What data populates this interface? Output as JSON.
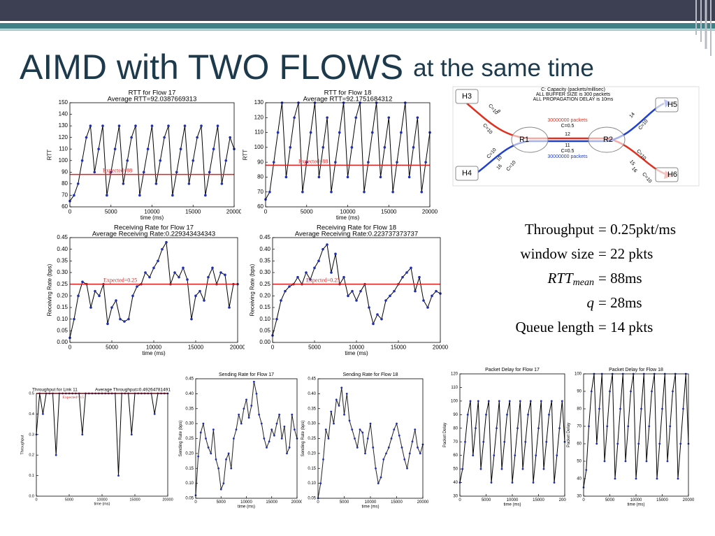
{
  "title": {
    "main": "AIMD with TWO FLOWS",
    "sub": "at the same time"
  },
  "diagram": {
    "notes": [
      "C: Capacity (packets/millisec)",
      "ALL BUFFER SIZE is 300 packets",
      "ALL PROPAGATION DELAY is 10ms"
    ],
    "nodes": [
      "H3",
      "H4",
      "R1",
      "R2",
      "H5",
      "H6"
    ],
    "link_labels": [
      "30000000 packets",
      "C=0.5",
      "12",
      "11",
      "C=0.5",
      "30000000 packets"
    ],
    "edge_labels": [
      "C=10",
      "8",
      "C=10",
      "C=10",
      "10",
      "16",
      "C=10",
      "14",
      "C=10",
      "C=10",
      "15",
      "16",
      "C=10"
    ]
  },
  "equations": [
    {
      "lhs": "Throughput",
      "rhs": "= 0.25pkt/ms"
    },
    {
      "lhs": "window size",
      "rhs": "= 22 pkts"
    },
    {
      "lhs": "RTT",
      "sub": "mean",
      "rhs": "= 88ms"
    },
    {
      "lhs": "q",
      "rhs": "= 28ms"
    },
    {
      "lhs": "Queue length",
      "rhs": "= 14 pkts"
    }
  ],
  "chart_data": [
    {
      "type": "line",
      "title": "RTT for Flow 17",
      "subtitle": "Average RTT=92.0387669313",
      "xlabel": "time (ms)",
      "ylabel": "RTT",
      "color": "#000000",
      "marker_color": "#1f2fb0",
      "x": [
        0,
        500,
        1000,
        1500,
        2000,
        2500,
        3000,
        3500,
        4000,
        4500,
        5000,
        5500,
        6000,
        6500,
        7000,
        7500,
        8000,
        8500,
        9000,
        9500,
        10000,
        10500,
        11000,
        11500,
        12000,
        12500,
        13000,
        13500,
        14000,
        14500,
        15000,
        15500,
        16000,
        16500,
        17000,
        17500,
        18000,
        18500,
        19000,
        19500,
        20000
      ],
      "values": [
        65,
        70,
        80,
        100,
        120,
        130,
        90,
        110,
        130,
        70,
        90,
        110,
        130,
        80,
        100,
        120,
        130,
        70,
        90,
        110,
        130,
        80,
        100,
        120,
        130,
        70,
        90,
        110,
        130,
        80,
        100,
        120,
        130,
        70,
        90,
        110,
        130,
        80,
        100,
        120,
        110
      ],
      "xlim": [
        0,
        20000
      ],
      "xticks": [
        0,
        5000,
        10000,
        15000,
        20000
      ],
      "ylim": [
        60,
        150
      ],
      "yticks": [
        60,
        70,
        80,
        90,
        100,
        110,
        120,
        130,
        140,
        150
      ],
      "expected": {
        "value": 88,
        "label": "Expected=88",
        "color": "#e02020"
      }
    },
    {
      "type": "line",
      "title": "RTT for Flow 18",
      "subtitle": "Average RTT=92.1751684312",
      "xlabel": "time (ms)",
      "ylabel": "RTT",
      "color": "#000000",
      "marker_color": "#1f2fb0",
      "x": [
        0,
        500,
        1000,
        1500,
        2000,
        2500,
        3000,
        3500,
        4000,
        4500,
        5000,
        5500,
        6000,
        6500,
        7000,
        7500,
        8000,
        8500,
        9000,
        9500,
        10000,
        10500,
        11000,
        11500,
        12000,
        12500,
        13000,
        13500,
        14000,
        14500,
        15000,
        15500,
        16000,
        16500,
        17000,
        17500,
        18000,
        18500,
        19000,
        19500,
        20000
      ],
      "values": [
        65,
        70,
        90,
        110,
        130,
        80,
        100,
        120,
        130,
        70,
        90,
        110,
        130,
        80,
        100,
        120,
        70,
        90,
        110,
        130,
        80,
        100,
        120,
        130,
        70,
        90,
        110,
        130,
        80,
        100,
        120,
        70,
        90,
        110,
        130,
        80,
        100,
        120,
        70,
        90,
        110
      ],
      "xlim": [
        0,
        20000
      ],
      "xticks": [
        0,
        5000,
        10000,
        15000,
        20000
      ],
      "ylim": [
        60,
        130
      ],
      "yticks": [
        60,
        70,
        80,
        90,
        100,
        110,
        120,
        130
      ],
      "expected": {
        "value": 88,
        "label": "Expected=88",
        "color": "#e02020"
      }
    },
    {
      "type": "line",
      "title": "Receiving Rate for Flow 17",
      "subtitle": "Average Receiving Rate:0.229343434343",
      "xlabel": "time (ms)",
      "ylabel": "Receiving Rate (bps)",
      "color": "#000000",
      "marker_color": "#1f2fb0",
      "x": [
        0,
        500,
        1000,
        1500,
        2000,
        2500,
        3000,
        3500,
        4000,
        4500,
        5000,
        5500,
        6000,
        6500,
        7000,
        7500,
        8000,
        8500,
        9000,
        9500,
        10000,
        10500,
        11000,
        11500,
        12000,
        12500,
        13000,
        13500,
        14000,
        14500,
        15000,
        15500,
        16000,
        16500,
        17000,
        17500,
        18000,
        18500,
        19000,
        19500,
        20000
      ],
      "values": [
        0.02,
        0.1,
        0.2,
        0.26,
        0.25,
        0.15,
        0.22,
        0.2,
        0.25,
        0.08,
        0.15,
        0.18,
        0.1,
        0.09,
        0.1,
        0.2,
        0.24,
        0.25,
        0.3,
        0.28,
        0.32,
        0.35,
        0.4,
        0.43,
        0.25,
        0.3,
        0.28,
        0.32,
        0.27,
        0.1,
        0.2,
        0.22,
        0.18,
        0.28,
        0.32,
        0.25,
        0.3,
        0.29,
        0.15,
        0.25,
        0.25
      ],
      "xlim": [
        0,
        20000
      ],
      "xticks": [
        0,
        5000,
        10000,
        15000,
        20000
      ],
      "ylim": [
        0,
        0.45
      ],
      "yticks": [
        {
          "value": 0,
          "label": "0.00"
        },
        0.05,
        {
          "value": 0.1,
          "label": "0.10"
        },
        0.15,
        {
          "value": 0.2,
          "label": "0.20"
        },
        0.25,
        {
          "value": 0.3,
          "label": "0.30"
        },
        0.35,
        {
          "value": 0.4,
          "label": "0.40"
        },
        0.45
      ],
      "expected": {
        "value": 0.25,
        "label": "Expected=0.25",
        "color": "#e02020"
      }
    },
    {
      "type": "line",
      "title": "Receiving Rate for Flow 18",
      "subtitle": "Average Receiving Rate:0.223737373737",
      "xlabel": "time (ms)",
      "ylabel": "Receiving Rate (bps)",
      "color": "#000000",
      "marker_color": "#1f2fb0",
      "x": [
        0,
        500,
        1000,
        1500,
        2000,
        2500,
        3000,
        3500,
        4000,
        4500,
        5000,
        5500,
        6000,
        6500,
        7000,
        7500,
        8000,
        8500,
        9000,
        9500,
        10000,
        10500,
        11000,
        11500,
        12000,
        12500,
        13000,
        13500,
        14000,
        14500,
        15000,
        15500,
        16000,
        16500,
        17000,
        17500,
        18000,
        18500,
        19000,
        19500,
        20000
      ],
      "values": [
        0.03,
        0.1,
        0.18,
        0.22,
        0.24,
        0.25,
        0.28,
        0.25,
        0.3,
        0.27,
        0.32,
        0.35,
        0.4,
        0.42,
        0.3,
        0.38,
        0.25,
        0.28,
        0.2,
        0.22,
        0.18,
        0.22,
        0.25,
        0.15,
        0.08,
        0.12,
        0.1,
        0.18,
        0.2,
        0.22,
        0.25,
        0.28,
        0.3,
        0.32,
        0.22,
        0.28,
        0.18,
        0.15,
        0.2,
        0.22,
        0.21
      ],
      "xlim": [
        0,
        20000
      ],
      "xticks": [
        0,
        5000,
        10000,
        15000,
        20000
      ],
      "ylim": [
        0,
        0.45
      ],
      "yticks": [
        {
          "value": 0,
          "label": "0.00"
        },
        0.05,
        {
          "value": 0.1,
          "label": "0.10"
        },
        0.15,
        {
          "value": 0.2,
          "label": "0.20"
        },
        0.25,
        {
          "value": 0.3,
          "label": "0.30"
        },
        0.35,
        {
          "value": 0.4,
          "label": "0.40"
        },
        0.45
      ],
      "expected": {
        "value": 0.25,
        "label": "Expected=0.25",
        "color": "#e02020"
      }
    },
    {
      "type": "line",
      "title": "Throughput for Link 11",
      "subtitle": "Average Throughput=0.49264781491",
      "xlabel": "time (ms)",
      "ylabel": "Throughput",
      "color": "#000000",
      "marker_color": "#1f2fb0",
      "x": [
        0,
        500,
        1000,
        1500,
        2000,
        2500,
        3000,
        3500,
        4000,
        4500,
        5000,
        5500,
        6000,
        6500,
        7000,
        7500,
        8000,
        8500,
        9000,
        9500,
        10000,
        10500,
        11000,
        11500,
        12000,
        12500,
        13000,
        13500,
        14000,
        14500,
        15000,
        15500,
        16000,
        16500,
        17000,
        17500,
        18000,
        18500,
        19000,
        19500,
        20000
      ],
      "values": [
        0.3,
        0.5,
        0.4,
        0.5,
        0.5,
        0.5,
        0.2,
        0.5,
        0.5,
        0.5,
        0.5,
        0.5,
        0.5,
        0.5,
        0.3,
        0.5,
        0.5,
        0.5,
        0.5,
        0.5,
        0.5,
        0.5,
        0.5,
        0.5,
        0.5,
        0.1,
        0.5,
        0.5,
        0.5,
        0.3,
        0.5,
        0.5,
        0.5,
        0.5,
        0.5,
        0.5,
        0.4,
        0.5,
        0.5,
        0.5,
        0.5
      ],
      "xlim": [
        0,
        20000
      ],
      "xticks": [
        0,
        5000,
        10000,
        15000,
        20000
      ],
      "ylim": [
        0,
        0.5
      ],
      "yticks": [
        {
          "value": 0,
          "label": "0.0"
        },
        0.1,
        0.2,
        0.3,
        0.4,
        0.5
      ],
      "expected": {
        "value": 0.5,
        "label": "Expected=0.5",
        "color": "#e02020"
      }
    },
    {
      "type": "line",
      "title": "Sending Rate for Flow 17",
      "xlabel": "time (ms)",
      "ylabel": "Sending Rate (bps)",
      "color": "#222222",
      "marker_color": "#1f2fb0",
      "x": [
        0,
        500,
        1000,
        1500,
        2000,
        2500,
        3000,
        3500,
        4000,
        4500,
        5000,
        5500,
        6000,
        6500,
        7000,
        7500,
        8000,
        8500,
        9000,
        9500,
        10000,
        10500,
        11000,
        11500,
        12000,
        12500,
        13000,
        13500,
        14000,
        14500,
        15000,
        15500,
        16000,
        16500,
        17000,
        17500,
        18000,
        18500,
        19000,
        19500,
        20000
      ],
      "values": [
        0.06,
        0.19,
        0.27,
        0.3,
        0.25,
        0.22,
        0.2,
        0.28,
        0.18,
        0.15,
        0.08,
        0.1,
        0.18,
        0.2,
        0.15,
        0.25,
        0.28,
        0.33,
        0.3,
        0.35,
        0.38,
        0.32,
        0.36,
        0.44,
        0.4,
        0.33,
        0.3,
        0.25,
        0.22,
        0.24,
        0.28,
        0.26,
        0.3,
        0.33,
        0.25,
        0.29,
        0.2,
        0.22,
        0.33,
        0.28,
        0.25
      ],
      "xlim": [
        0,
        20000
      ],
      "xticks": [
        0,
        5000,
        10000,
        15000,
        20000
      ],
      "ylim": [
        0.05,
        0.45
      ],
      "yticks": [
        0.05,
        {
          "value": 0.1,
          "label": "0.10"
        },
        0.15,
        {
          "value": 0.2,
          "label": "0.20"
        },
        0.25,
        {
          "value": 0.3,
          "label": "0.30"
        },
        0.35,
        {
          "value": 0.4,
          "label": "0.40"
        },
        0.45
      ]
    },
    {
      "type": "line",
      "title": "Sending Rate for Flow 18",
      "xlabel": "time (ms)",
      "ylabel": "Sending Rate (bps)",
      "color": "#222222",
      "marker_color": "#1f2fb0",
      "x": [
        0,
        500,
        1000,
        1500,
        2000,
        2500,
        3000,
        3500,
        4000,
        4500,
        5000,
        5500,
        6000,
        6500,
        7000,
        7500,
        8000,
        8500,
        9000,
        9500,
        10000,
        10500,
        11000,
        11500,
        12000,
        12500,
        13000,
        13500,
        14000,
        14500,
        15000,
        15500,
        16000,
        16500,
        17000,
        17500,
        18000,
        18500,
        19000,
        19500,
        20000
      ],
      "values": [
        0.05,
        0.1,
        0.18,
        0.28,
        0.25,
        0.34,
        0.3,
        0.38,
        0.36,
        0.42,
        0.33,
        0.4,
        0.31,
        0.28,
        0.25,
        0.22,
        0.28,
        0.27,
        0.2,
        0.25,
        0.3,
        0.22,
        0.15,
        0.1,
        0.12,
        0.18,
        0.2,
        0.22,
        0.25,
        0.28,
        0.3,
        0.26,
        0.22,
        0.18,
        0.15,
        0.2,
        0.24,
        0.28,
        0.22,
        0.2,
        0.23
      ],
      "xlim": [
        0,
        20000
      ],
      "xticks": [
        0,
        5000,
        10000,
        15000,
        20000
      ],
      "ylim": [
        0.05,
        0.45
      ],
      "yticks": [
        0.05,
        {
          "value": 0.1,
          "label": "0.10"
        },
        0.15,
        {
          "value": 0.2,
          "label": "0.20"
        },
        0.25,
        {
          "value": 0.3,
          "label": "0.30"
        },
        0.35,
        {
          "value": 0.4,
          "label": "0.40"
        },
        0.45
      ]
    },
    {
      "type": "line",
      "title": "Packet Delay for Flow 17",
      "xlabel": "time (ms)",
      "ylabel": "Packet Delay",
      "color": "#000000",
      "marker_color": "#1f2fb0",
      "x": [
        0,
        500,
        1000,
        1500,
        2000,
        2500,
        3000,
        3500,
        4000,
        4500,
        5000,
        5500,
        6000,
        6500,
        7000,
        7500,
        8000,
        8500,
        9000,
        9500,
        10000,
        10500,
        11000,
        11500,
        12000,
        12500,
        13000,
        13500,
        14000,
        14500,
        15000,
        15500,
        16000,
        16500,
        17000,
        17500,
        18000,
        18500,
        19000,
        19500,
        20000
      ],
      "values": [
        40,
        50,
        70,
        90,
        100,
        60,
        80,
        100,
        50,
        70,
        90,
        100,
        40,
        60,
        80,
        100,
        50,
        70,
        90,
        100,
        40,
        60,
        80,
        100,
        50,
        70,
        90,
        100,
        40,
        60,
        80,
        100,
        50,
        70,
        90,
        100,
        40,
        60,
        80,
        100,
        70
      ],
      "xlim": [
        0,
        20000
      ],
      "xticks": [
        0,
        5000,
        10000,
        15000,
        20000
      ],
      "ylim": [
        30,
        120
      ],
      "yticks": [
        30,
        40,
        50,
        60,
        70,
        80,
        90,
        100,
        110,
        120
      ]
    },
    {
      "type": "line",
      "title": "Packet Delay for Flow 18",
      "xlabel": "time (ms)",
      "ylabel": "Packet Delay",
      "color": "#000000",
      "marker_color": "#1f2fb0",
      "x": [
        0,
        500,
        1000,
        1500,
        2000,
        2500,
        3000,
        3500,
        4000,
        4500,
        5000,
        5500,
        6000,
        6500,
        7000,
        7500,
        8000,
        8500,
        9000,
        9500,
        10000,
        10500,
        11000,
        11500,
        12000,
        12500,
        13000,
        13500,
        14000,
        14500,
        15000,
        15500,
        16000,
        16500,
        17000,
        17500,
        18000,
        18500,
        19000,
        19500,
        20000
      ],
      "values": [
        35,
        45,
        70,
        90,
        100,
        60,
        80,
        100,
        50,
        70,
        90,
        100,
        40,
        60,
        80,
        100,
        50,
        70,
        90,
        100,
        40,
        60,
        80,
        100,
        50,
        70,
        90,
        100,
        40,
        60,
        80,
        100,
        50,
        70,
        90,
        100,
        40,
        60,
        80,
        100,
        60
      ],
      "xlim": [
        0,
        20000
      ],
      "xticks": [
        0,
        5000,
        10000,
        15000,
        20000
      ],
      "ylim": [
        30,
        100
      ],
      "yticks": [
        30,
        40,
        50,
        60,
        70,
        80,
        90,
        100
      ]
    }
  ]
}
